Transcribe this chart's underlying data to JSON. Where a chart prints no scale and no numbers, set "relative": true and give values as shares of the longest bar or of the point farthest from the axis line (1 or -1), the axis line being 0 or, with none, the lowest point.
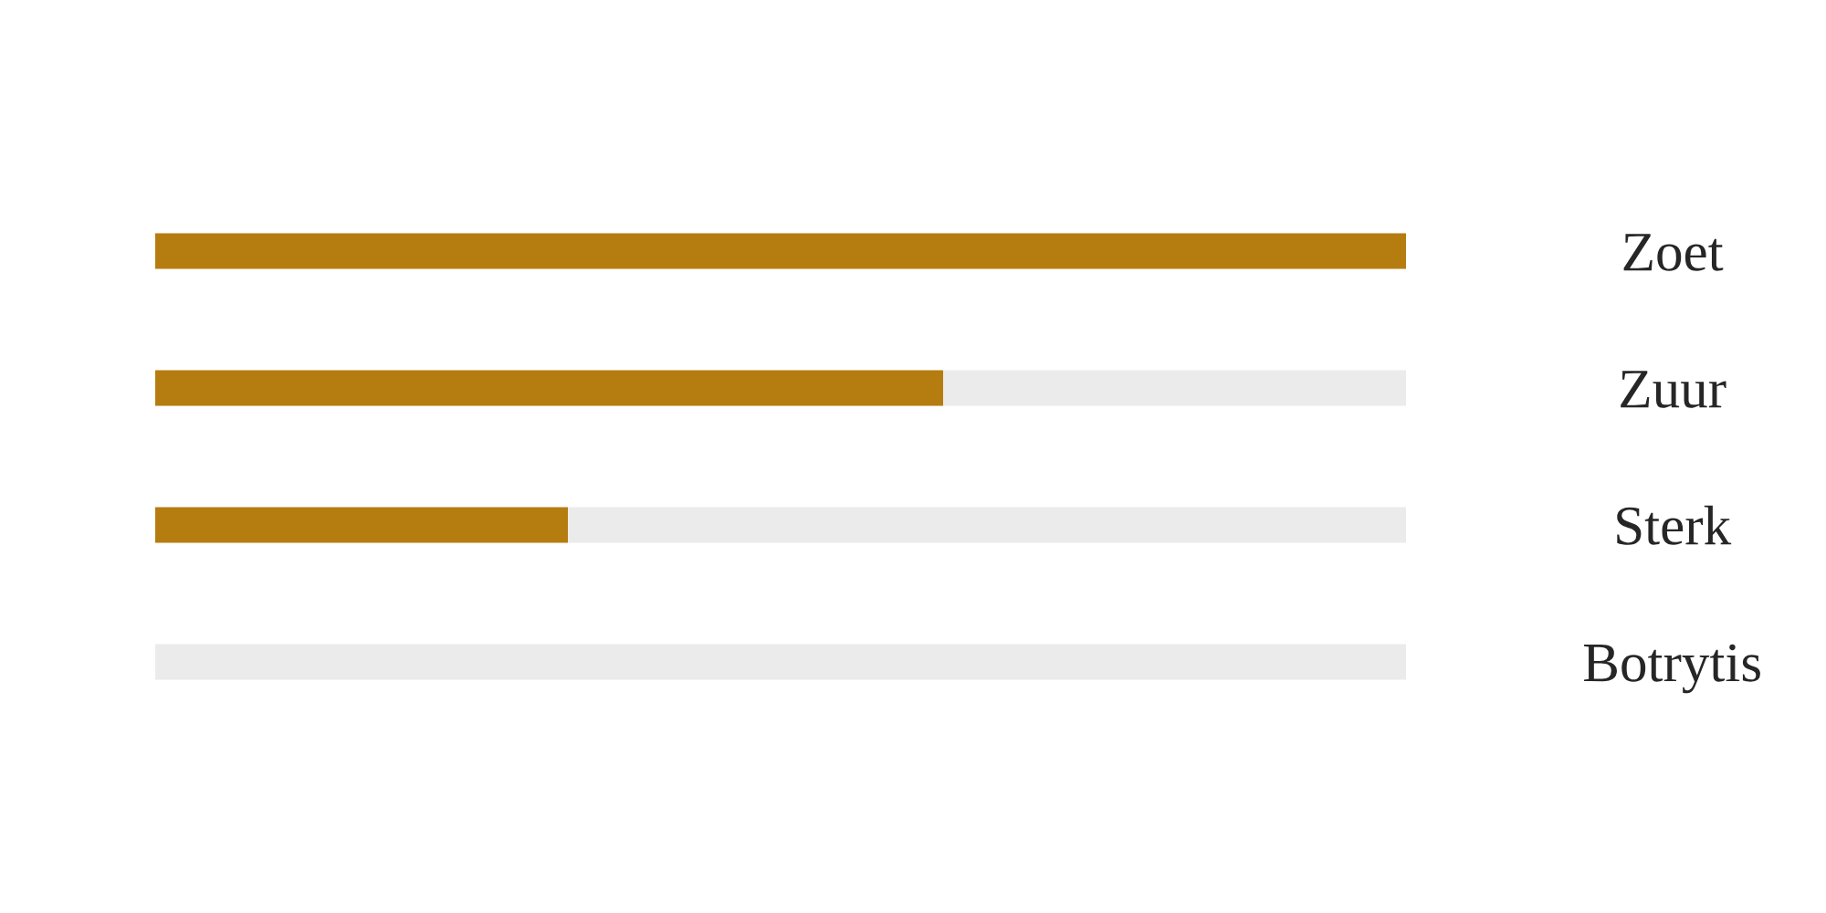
{
  "chart_data": {
    "type": "bar",
    "orientation": "horizontal",
    "stacked": true,
    "relative": true,
    "categories": [
      "Zoet",
      "Zuur",
      "Sterk",
      "Botrytis"
    ],
    "series": [
      {
        "color": "#b57d10",
        "values": [
          1.0,
          0.63,
          0.33,
          0
        ]
      },
      {
        "color": "#ebebeb",
        "values": [
          0,
          0.37,
          0.67,
          1.0
        ]
      }
    ]
  }
}
